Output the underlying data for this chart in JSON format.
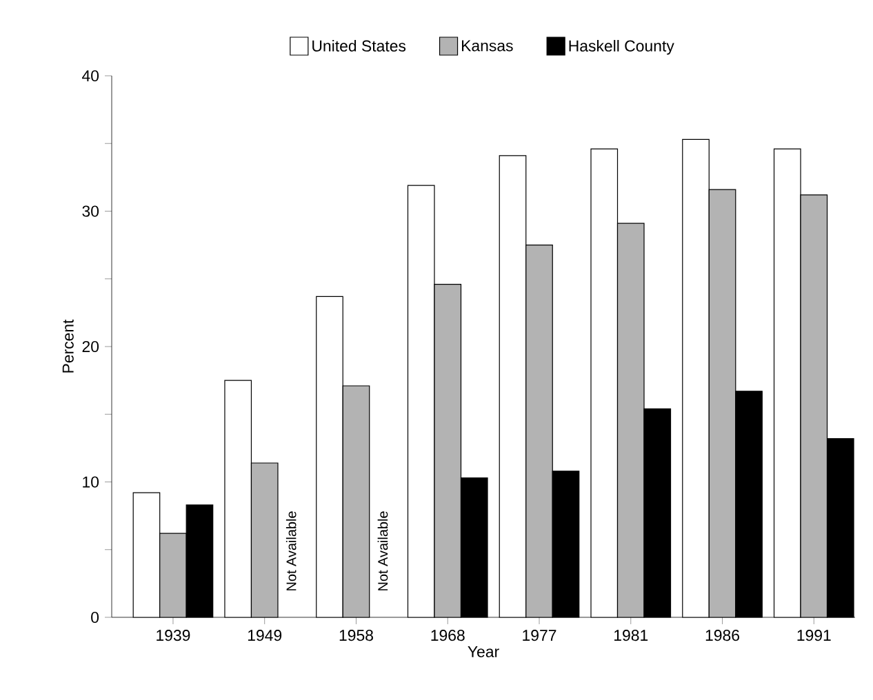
{
  "chart_data": {
    "type": "bar",
    "xlabel": "Year",
    "ylabel": "Percent",
    "categories": [
      "1939",
      "1949",
      "1958",
      "1968",
      "1977",
      "1981",
      "1986",
      "1991"
    ],
    "series": [
      {
        "name": "United States",
        "color": "#ffffff",
        "values": [
          9.2,
          17.5,
          23.7,
          31.9,
          34.1,
          34.6,
          35.3,
          34.6
        ]
      },
      {
        "name": "Kansas",
        "color": "#b3b3b3",
        "values": [
          6.2,
          11.4,
          17.1,
          24.6,
          27.5,
          29.1,
          31.6,
          31.2
        ]
      },
      {
        "name": "Haskell County",
        "color": "#000000",
        "values": [
          8.3,
          null,
          null,
          10.3,
          10.8,
          15.4,
          16.7,
          13.2
        ]
      }
    ],
    "ylim": [
      0,
      40
    ],
    "yticks": [
      0,
      {
        "value": 5,
        "label": null
      },
      10,
      {
        "value": 15,
        "label": null
      },
      20,
      {
        "value": 25,
        "label": null
      },
      30,
      {
        "value": 35,
        "label": null
      },
      40
    ],
    "legend": "top",
    "annotations": [
      "Not Available",
      "Not Available"
    ]
  }
}
